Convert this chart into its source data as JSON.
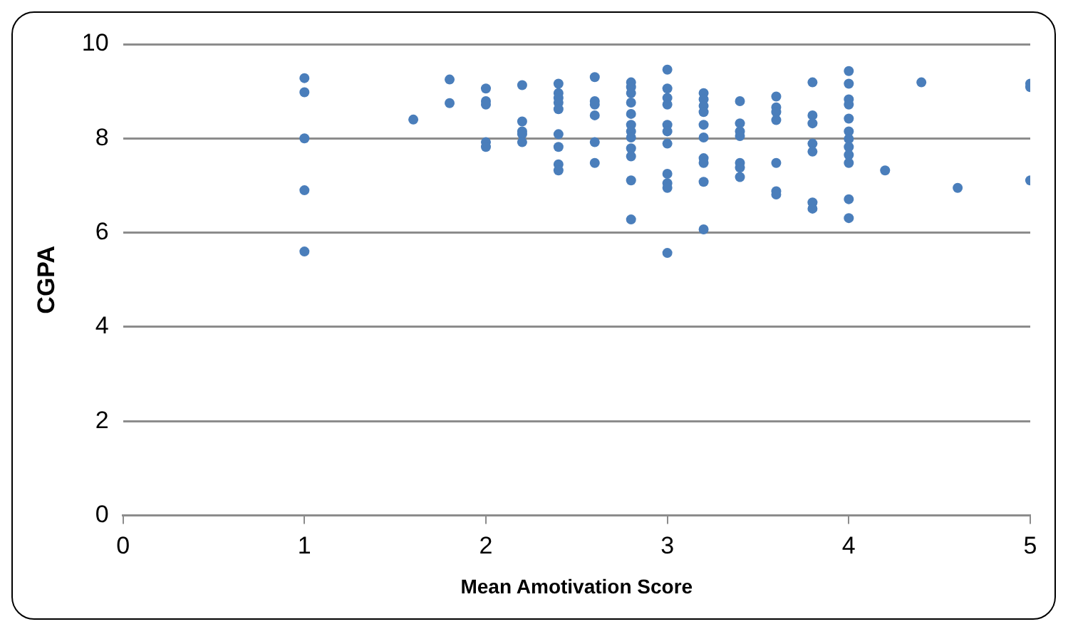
{
  "chart_data": {
    "type": "scatter",
    "xlabel": "Mean Amotivation Score",
    "ylabel": "CGPA",
    "xlim": [
      0,
      5
    ],
    "xticks": [
      0,
      1,
      2,
      3,
      4,
      5
    ],
    "ylim": [
      0,
      10
    ],
    "yticks": [
      0,
      2,
      4,
      6,
      8,
      10
    ],
    "grid": "y",
    "marker": "circle",
    "series": [
      {
        "color": "#4a7ebb",
        "x": [
          1,
          1,
          1,
          1,
          1,
          1.6,
          1.8,
          1.8,
          2,
          2,
          2,
          2,
          2,
          2.2,
          2.2,
          2.2,
          2.2,
          2.2,
          2.4,
          2.4,
          2.4,
          2.4,
          2.4,
          2.4,
          2.4,
          2.4,
          2.4,
          2.6,
          2.6,
          2.6,
          2.6,
          2.6,
          2.6,
          2.8,
          2.8,
          2.8,
          2.8,
          2.8,
          2.8,
          2.8,
          2.8,
          2.8,
          2.8,
          2.8,
          2.8,
          3,
          3,
          3,
          3,
          3,
          3,
          3,
          3,
          3,
          3,
          3,
          3.2,
          3.2,
          3.2,
          3.2,
          3.2,
          3.2,
          3.2,
          3.2,
          3.2,
          3.2,
          3.4,
          3.4,
          3.4,
          3.4,
          3.4,
          3.4,
          3.4,
          3.6,
          3.6,
          3.6,
          3.6,
          3.6,
          3.6,
          3.6,
          3.8,
          3.8,
          3.8,
          3.8,
          3.8,
          3.8,
          3.8,
          4,
          4,
          4,
          4,
          4,
          4,
          4,
          4,
          4,
          4,
          4,
          4,
          4.2,
          4.4,
          4.6,
          5,
          5,
          5
        ],
        "values": [
          9.28,
          8.98,
          8.0,
          6.9,
          5.6,
          8.4,
          9.25,
          8.75,
          9.06,
          8.79,
          8.72,
          7.92,
          7.82,
          9.13,
          8.36,
          8.15,
          8.09,
          7.92,
          9.16,
          8.96,
          8.86,
          8.76,
          8.62,
          8.09,
          7.82,
          7.45,
          7.32,
          9.3,
          8.79,
          8.72,
          8.49,
          7.92,
          7.48,
          9.19,
          9.09,
          8.96,
          8.76,
          8.52,
          8.29,
          8.15,
          8.02,
          7.79,
          7.62,
          7.11,
          6.28,
          9.46,
          9.06,
          8.86,
          8.72,
          8.29,
          8.15,
          7.89,
          7.25,
          7.05,
          6.95,
          5.57,
          8.96,
          8.83,
          8.69,
          8.56,
          8.29,
          8.02,
          7.58,
          7.48,
          7.08,
          6.07,
          8.79,
          8.32,
          8.15,
          8.05,
          7.48,
          7.38,
          7.18,
          8.89,
          8.66,
          8.56,
          8.39,
          7.48,
          6.88,
          6.81,
          9.19,
          8.49,
          8.32,
          7.89,
          7.72,
          6.64,
          6.51,
          9.43,
          9.16,
          8.83,
          8.72,
          8.42,
          8.15,
          7.99,
          7.82,
          7.65,
          7.48,
          6.71,
          6.31,
          7.32,
          9.19,
          6.95,
          9.16,
          9.09,
          7.11
        ]
      }
    ]
  }
}
